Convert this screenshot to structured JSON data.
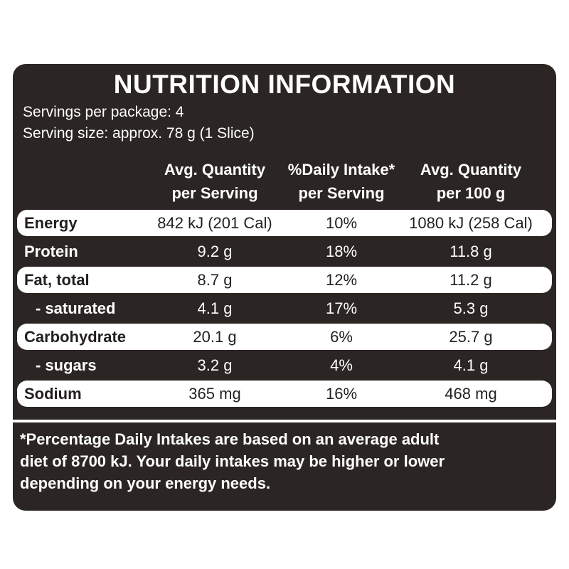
{
  "label": {
    "title": "NUTRITION INFORMATION",
    "servings_per_package": "Servings per package: 4",
    "serving_size": "Serving size: approx. 78 g (1 Slice)"
  },
  "columns": [
    {
      "line1": "Avg. Quantity",
      "line2": "per Serving"
    },
    {
      "line1": "%Daily Intake*",
      "line2": "per Serving"
    },
    {
      "line1": "Avg. Quantity",
      "line2": "per 100 g"
    }
  ],
  "rows": [
    {
      "name": "Energy",
      "per_serving": "842 kJ (201 Cal)",
      "daily_intake": "10%",
      "per_100g": "1080 kJ (258 Cal)"
    },
    {
      "name": "Protein",
      "per_serving": "9.2 g",
      "daily_intake": "18%",
      "per_100g": "11.8 g"
    },
    {
      "name": "Fat, total",
      "per_serving": "8.7 g",
      "daily_intake": "12%",
      "per_100g": "11.2 g"
    },
    {
      "name": "- saturated",
      "per_serving": "4.1 g",
      "daily_intake": "17%",
      "per_100g": "5.3 g"
    },
    {
      "name": "Carbohydrate",
      "per_serving": "20.1 g",
      "daily_intake": "6%",
      "per_100g": "25.7 g"
    },
    {
      "name": "- sugars",
      "per_serving": "3.2 g",
      "daily_intake": "4%",
      "per_100g": "4.1 g"
    },
    {
      "name": "Sodium",
      "per_serving": "365 mg",
      "daily_intake": "16%",
      "per_100g": "468 mg"
    }
  ],
  "footnote": {
    "line1": "*Percentage Daily Intakes are based on an average adult",
    "line2": "diet of 8700 kJ. Your daily intakes may be higher or lower",
    "line3": "depending on your energy needs."
  },
  "colors": {
    "panel_background": "#2b2624",
    "highlight_row": "#ffffff",
    "text_on_dark": "#ffffff",
    "text_on_light": "#231f20"
  }
}
